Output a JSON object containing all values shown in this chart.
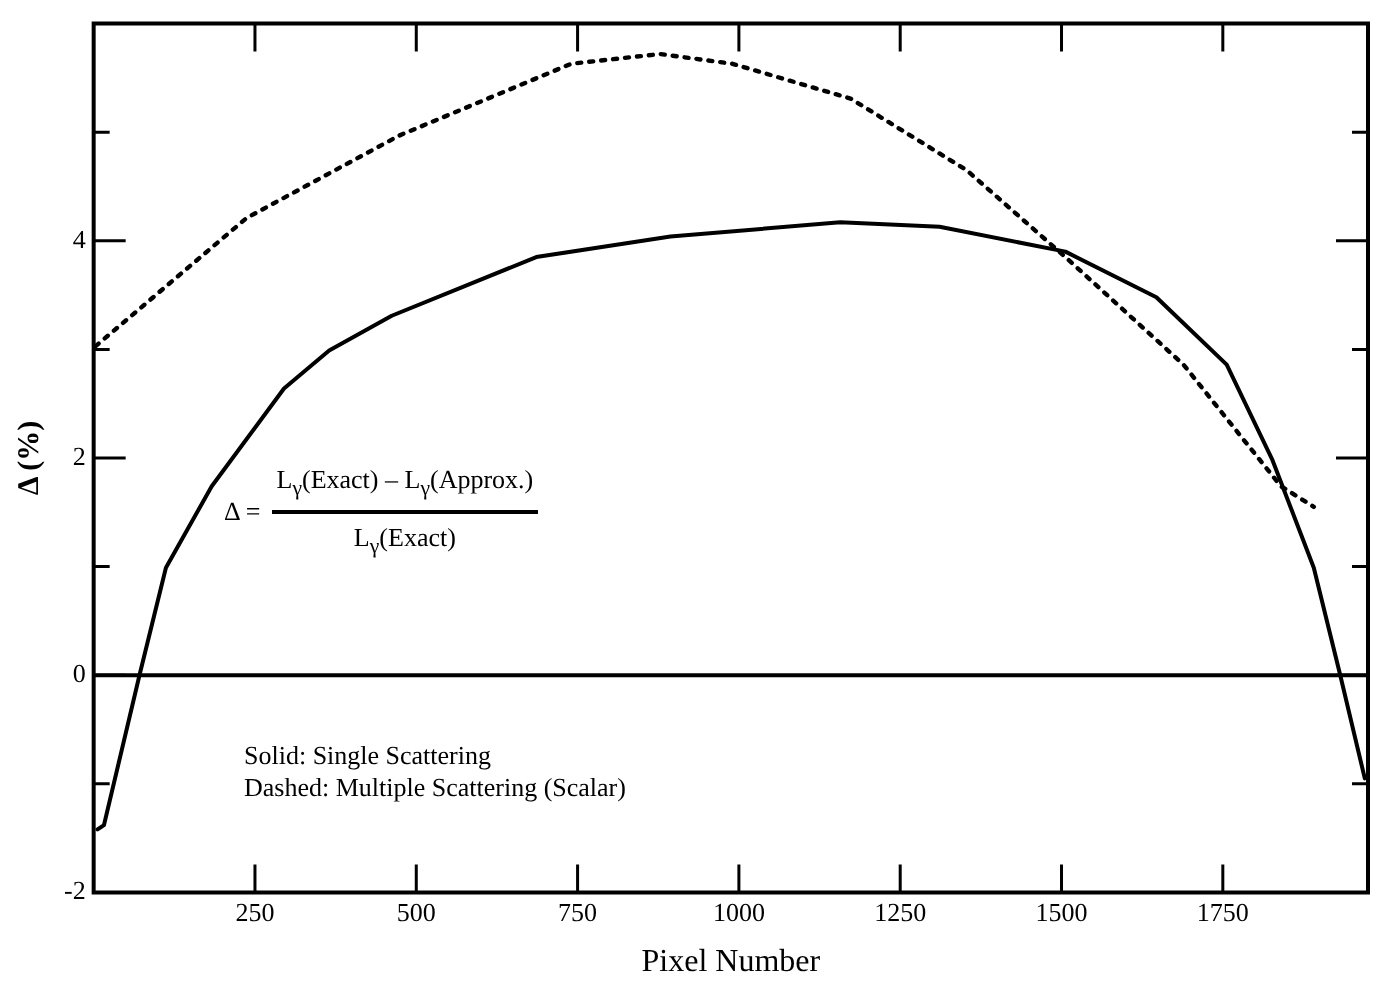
{
  "chart_data": {
    "type": "line",
    "xlabel": "Pixel Number",
    "ylabel": "Δ (%)",
    "xlim": [
      0,
      1975
    ],
    "xticks": [
      250,
      500,
      750,
      1000,
      1250,
      1500,
      1750
    ],
    "ylim": [
      -2,
      6
    ],
    "yticks": [
      -2,
      {
        "value": -1,
        "label": null
      },
      0,
      {
        "value": 1,
        "label": null
      },
      2,
      {
        "value": 3,
        "label": null
      },
      4,
      {
        "value": 5,
        "label": null
      }
    ],
    "legend": false,
    "marker": "none",
    "ref_lines": [
      {
        "axis": "y",
        "value": 0,
        "color": "#000000"
      }
    ],
    "annotations": [
      "Δ =",
      "L$_{γ}$(Exact) – L$_{γ}$(Approx.)",
      "L$_{γ}$(Exact)",
      "Solid:     Single Scattering",
      "Dashed: Multiple Scattering (Scalar)"
    ],
    "series": [
      {
        "color": "#000000",
        "line_style": "solid",
        "x": [
          6,
          16,
          71,
          112,
          183,
          295,
          365,
          462,
          686,
          894,
          1157,
          1311,
          1506,
          1647,
          1756,
          1827,
          1891,
          1932,
          1970
        ],
        "values": [
          -1.42,
          -1.38,
          0,
          0.99,
          1.74,
          2.64,
          2.99,
          3.31,
          3.85,
          4.04,
          4.17,
          4.13,
          3.9,
          3.48,
          2.86,
          1.98,
          0.99,
          0,
          -0.95
        ]
      },
      {
        "color": "#000000",
        "line_style": "dotted",
        "x": [
          3,
          237,
          474,
          740,
          878,
          990,
          1173,
          1353,
          1506,
          1689,
          1840,
          1891
        ],
        "values": [
          3.03,
          4.21,
          4.97,
          5.63,
          5.72,
          5.63,
          5.31,
          4.65,
          3.85,
          2.86,
          1.74,
          1.55
        ]
      }
    ]
  }
}
